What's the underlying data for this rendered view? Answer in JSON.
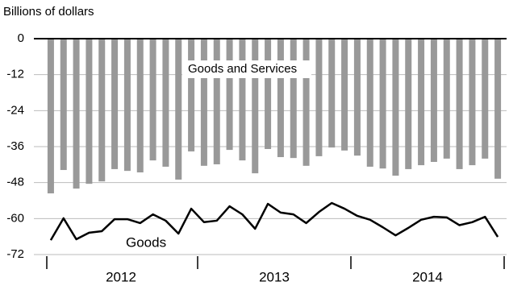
{
  "chart_data": {
    "type": "bar-line",
    "y_label": "Billions of dollars",
    "categories": [
      null,
      null,
      null,
      null,
      null,
      null,
      null,
      null,
      null,
      null,
      null,
      null,
      null,
      null,
      null,
      null,
      null,
      null,
      null,
      null,
      null,
      null,
      null,
      null,
      null,
      null,
      null,
      null,
      null,
      null,
      null,
      null,
      null,
      null,
      null,
      null
    ],
    "years": [
      "2012",
      "2013",
      "2014"
    ],
    "series": [
      {
        "name": "Goods and Services",
        "type": "bar",
        "color": "#999999",
        "values": [
          -51.6,
          -43.8,
          -50.0,
          -48.4,
          -47.6,
          -43.5,
          -44.1,
          -44.6,
          -40.6,
          -42.7,
          -47.0,
          -37.6,
          -42.4,
          -41.9,
          -37.1,
          -40.6,
          -44.9,
          -36.8,
          -39.5,
          -39.8,
          -42.4,
          -39.2,
          -36.3,
          -37.3,
          -39.0,
          -42.7,
          -43.3,
          -45.7,
          -43.5,
          -42.2,
          -41.1,
          -40.0,
          -43.5,
          -42.2,
          -40.0,
          -46.7
        ]
      },
      {
        "name": "Goods",
        "type": "line",
        "color": "#000000",
        "values": [
          -67.2,
          -59.9,
          -66.9,
          -64.7,
          -64.2,
          -60.2,
          -60.2,
          -61.5,
          -58.6,
          -60.7,
          -65.0,
          -56.7,
          -61.2,
          -60.7,
          -55.9,
          -58.6,
          -63.4,
          -55.1,
          -58.0,
          -58.6,
          -61.5,
          -57.8,
          -54.8,
          -56.7,
          -59.1,
          -60.4,
          -62.9,
          -65.6,
          -63.1,
          -60.4,
          -59.4,
          -59.6,
          -62.2,
          -61.2,
          -59.4,
          -66.1
        ]
      }
    ],
    "ylim": [
      -72,
      0
    ],
    "yticks": [
      0,
      -12,
      -24,
      -36,
      -48,
      -60,
      -72
    ],
    "grid": true
  }
}
